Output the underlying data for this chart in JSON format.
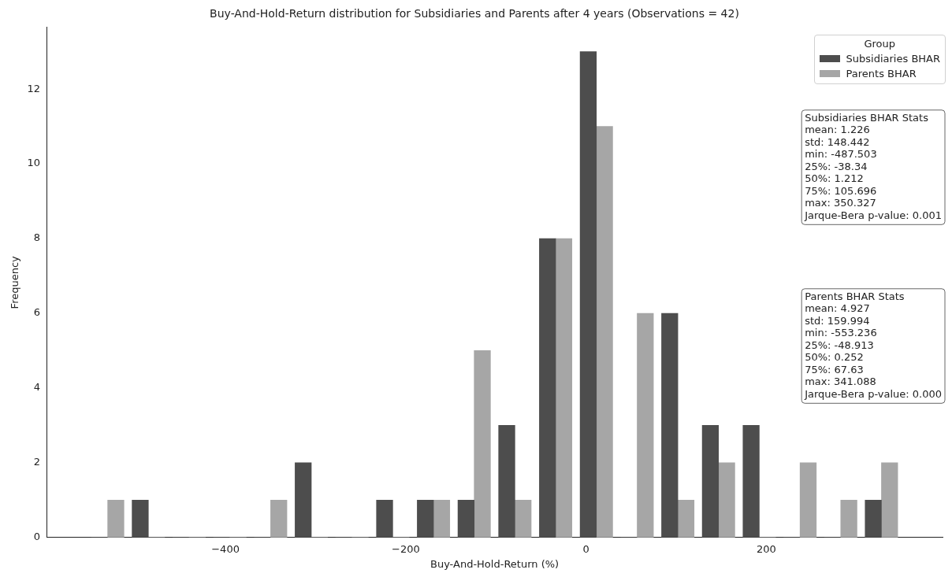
{
  "chart_data": {
    "type": "histogram",
    "title": "Buy-And-Hold-Return distribution for Subsidiaries and Parents after 4 years (Observations = 42)",
    "xlabel": "Buy-And-Hold-Return (%)",
    "ylabel": "Frequency",
    "legend_title": "Group",
    "legend": "top right",
    "grid": false,
    "bins": [
      -553.2,
      -508.1,
      -462.9,
      -417.7,
      -372.5,
      -327.3,
      -282.2,
      -237.0,
      -191.8,
      -146.6,
      -101.5,
      -56.3,
      -11.1,
      34.1,
      79.3,
      124.4,
      169.6,
      214.8,
      260.0,
      305.1,
      350.3
    ],
    "series": [
      {
        "name": "Subsidiaries BHAR",
        "color": "#4d4d4d",
        "values": [
          0,
          1,
          0,
          0,
          0,
          2,
          0,
          1,
          1,
          1,
          3,
          8,
          13,
          0,
          6,
          3,
          3,
          0,
          0,
          1
        ]
      },
      {
        "name": "Parents BHAR",
        "color": "#a6a6a6",
        "values": [
          1,
          0,
          0,
          0,
          1,
          0,
          0,
          0,
          1,
          5,
          1,
          8,
          11,
          6,
          1,
          2,
          0,
          2,
          1,
          2
        ]
      }
    ],
    "xlim": [
      -598.4,
      395.5
    ],
    "xticks": [
      -400,
      -200,
      0,
      200
    ],
    "ylim": [
      0,
      13.65
    ],
    "yticks": [
      0,
      2,
      4,
      6,
      8,
      10,
      12
    ],
    "annotations": [
      "Subsidiaries BHAR Stats\nmean: 1.226\nstd: 148.442\nmin: -487.503\n25%: -38.34\n50%: 1.212\n75%: 105.696\nmax: 350.327\nJarque-Bera p-value: 0.001",
      "Parents BHAR Stats\nmean: 4.927\nstd: 159.994\nmin: -553.236\n25%: -48.913\n50%: 0.252\n75%: 67.63\nmax: 341.088\nJarque-Bera p-value: 0.000"
    ]
  }
}
